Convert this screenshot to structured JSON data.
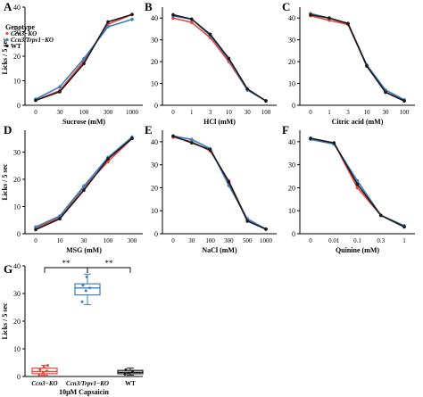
{
  "colors": {
    "ccn3": "#e8453c",
    "double": "#3a7fc4",
    "wt": "#1a1a1a",
    "axis": "#000000"
  },
  "legend": {
    "title": "Genotype",
    "items": [
      {
        "series": "ccn3",
        "label": "Ccn3−KO"
      },
      {
        "series": "double",
        "label": "Ccn3/Trpv1−KO"
      },
      {
        "series": "wt",
        "label": "WT"
      }
    ]
  },
  "chart_data": [
    {
      "panel": "A",
      "type": "line",
      "xlabel": "Sucrose (mM)",
      "ylabel": "Licks / 5 sec",
      "categories": [
        "0",
        "30",
        "100",
        "300",
        "1000"
      ],
      "ylim": [
        0,
        40
      ],
      "yticks": [
        "0",
        "10",
        "20",
        "30",
        "40"
      ],
      "series": [
        {
          "name": "Ccn3−KO",
          "key": "ccn3",
          "values": [
            2,
            6,
            18,
            33,
            37
          ]
        },
        {
          "name": "Ccn3/Trpv1−KO",
          "key": "double",
          "values": [
            2.5,
            7.5,
            19,
            32,
            35
          ]
        },
        {
          "name": "WT",
          "key": "wt",
          "values": [
            2,
            5.5,
            17,
            34,
            37
          ]
        }
      ]
    },
    {
      "panel": "B",
      "type": "line",
      "xlabel": "HCl (mM)",
      "ylabel": "",
      "categories": [
        "0",
        "1",
        "3",
        "10",
        "30",
        "100"
      ],
      "ylim": [
        0,
        45
      ],
      "yticks": [
        "0",
        "10",
        "20",
        "30",
        "40"
      ],
      "series": [
        {
          "name": "Ccn3−KO",
          "key": "ccn3",
          "values": [
            40,
            38,
            31,
            20,
            7,
            2
          ]
        },
        {
          "name": "Ccn3/Trpv1−KO",
          "key": "double",
          "values": [
            41,
            39.5,
            32,
            21,
            7,
            2
          ]
        },
        {
          "name": "WT",
          "key": "wt",
          "values": [
            41.5,
            39.5,
            32.5,
            21.5,
            7.5,
            2
          ]
        }
      ]
    },
    {
      "panel": "C",
      "type": "line",
      "xlabel": "Citric acid (mM)",
      "ylabel": "",
      "categories": [
        "0",
        "1",
        "3",
        "10",
        "30",
        "100"
      ],
      "ylim": [
        0,
        45
      ],
      "yticks": [
        "0",
        "10",
        "20",
        "30",
        "40"
      ],
      "series": [
        {
          "name": "Ccn3−KO",
          "key": "ccn3",
          "values": [
            41,
            39,
            37,
            18,
            6,
            2
          ]
        },
        {
          "name": "Ccn3/Trpv1−KO",
          "key": "double",
          "values": [
            42,
            40,
            37.5,
            18.5,
            7,
            2.5
          ]
        },
        {
          "name": "WT",
          "key": "wt",
          "values": [
            41.5,
            40,
            37.5,
            18,
            6,
            2
          ]
        }
      ]
    },
    {
      "panel": "D",
      "type": "line",
      "xlabel": "MSG (mM)",
      "ylabel": "Licks / 5 sec",
      "categories": [
        "0",
        "10",
        "30",
        "100",
        "300"
      ],
      "ylim": [
        0,
        38
      ],
      "yticks": [
        "0",
        "10",
        "20",
        "30"
      ],
      "series": [
        {
          "name": "Ccn3−KO",
          "key": "ccn3",
          "values": [
            2,
            6,
            17,
            26.5,
            35
          ]
        },
        {
          "name": "Ccn3/Trpv1−KO",
          "key": "double",
          "values": [
            2.5,
            6.5,
            17.5,
            28,
            35.5
          ]
        },
        {
          "name": "WT",
          "key": "wt",
          "values": [
            1.5,
            5.5,
            16,
            27.5,
            35
          ]
        }
      ]
    },
    {
      "panel": "E",
      "type": "line",
      "xlabel": "NaCl (mM)",
      "ylabel": "",
      "categories": [
        "0",
        "30",
        "100",
        "300",
        "500",
        "1000"
      ],
      "ylim": [
        0,
        45
      ],
      "yticks": [
        "0",
        "10",
        "20",
        "30",
        "40"
      ],
      "series": [
        {
          "name": "Ccn3−KO",
          "key": "ccn3",
          "values": [
            42,
            40,
            36,
            23,
            6,
            2
          ]
        },
        {
          "name": "Ccn3/Trpv1−KO",
          "key": "double",
          "values": [
            42.5,
            41,
            37,
            21,
            6.5,
            2
          ]
        },
        {
          "name": "WT",
          "key": "wt",
          "values": [
            42.5,
            39.5,
            36.5,
            22.5,
            5.5,
            2
          ]
        }
      ]
    },
    {
      "panel": "F",
      "type": "line",
      "xlabel": "Quinine (mM)",
      "ylabel": "",
      "categories": [
        "0",
        "0.01",
        "0.1",
        "0.3",
        "1"
      ],
      "ylim": [
        0,
        45
      ],
      "yticks": [
        "0",
        "10",
        "20",
        "30",
        "40"
      ],
      "series": [
        {
          "name": "Ccn3−KO",
          "key": "ccn3",
          "values": [
            41.5,
            39.5,
            20,
            8,
            3
          ]
        },
        {
          "name": "Ccn3/Trpv1−KO",
          "key": "double",
          "values": [
            41,
            39,
            23,
            8,
            3.5
          ]
        },
        {
          "name": "WT",
          "key": "wt",
          "values": [
            41.5,
            39.5,
            21.5,
            8,
            3
          ]
        }
      ]
    },
    {
      "panel": "G",
      "type": "box",
      "xlabel": "10μM Capsaicin",
      "ylabel": "Licks / 5 sec",
      "categories": [
        "Ccn3−KO",
        "Ccn3/Trpv1−KO",
        "WT"
      ],
      "ylim": [
        0,
        40
      ],
      "yticks": [
        "0",
        "10",
        "20",
        "30",
        "40"
      ],
      "boxes": [
        {
          "key": "ccn3",
          "min": 0.5,
          "q1": 1,
          "median": 1.8,
          "q3": 3,
          "max": 4,
          "points": [
            0.5,
            1.2,
            2,
            2.5,
            3.5,
            4
          ]
        },
        {
          "key": "double",
          "min": 26,
          "q1": 29.5,
          "median": 32,
          "q3": 33.5,
          "max": 37,
          "points": [
            27,
            31,
            32,
            33,
            36
          ]
        },
        {
          "key": "wt",
          "min": 0.5,
          "q1": 1,
          "median": 1.5,
          "q3": 2.2,
          "max": 3,
          "points": [
            0.8,
            1.3,
            1.8,
            2.4
          ]
        }
      ],
      "significance": [
        {
          "from": 0,
          "to": 1,
          "label": "**"
        },
        {
          "from": 1,
          "to": 2,
          "label": "**"
        }
      ]
    }
  ]
}
